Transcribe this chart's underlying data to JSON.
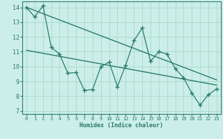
{
  "xlabel": "Humidex (Indice chaleur)",
  "bg_color": "#cceee8",
  "grid_color": "#aaddcc",
  "line_color": "#2a7a6a",
  "xlim": [
    -0.5,
    23.5
  ],
  "ylim": [
    6.8,
    14.4
  ],
  "yticks": [
    7,
    8,
    9,
    10,
    11,
    12,
    13,
    14
  ],
  "xticks": [
    0,
    1,
    2,
    3,
    4,
    5,
    6,
    7,
    8,
    9,
    10,
    11,
    12,
    13,
    14,
    15,
    16,
    17,
    18,
    19,
    20,
    21,
    22,
    23
  ],
  "data_x": [
    0,
    1,
    2,
    3,
    4,
    5,
    6,
    7,
    8,
    9,
    10,
    11,
    12,
    13,
    14,
    15,
    16,
    17,
    18,
    19,
    20,
    21,
    22,
    23
  ],
  "data_y": [
    14.0,
    13.35,
    14.1,
    11.3,
    10.85,
    9.55,
    9.6,
    8.4,
    8.45,
    10.0,
    10.3,
    8.65,
    10.1,
    11.75,
    12.6,
    10.35,
    11.0,
    10.85,
    9.85,
    9.25,
    8.2,
    7.4,
    8.1,
    8.5
  ],
  "trend1_x": [
    0,
    23
  ],
  "trend1_y": [
    14.0,
    9.1
  ],
  "trend2_x": [
    0,
    23
  ],
  "trend2_y": [
    11.1,
    8.75
  ]
}
